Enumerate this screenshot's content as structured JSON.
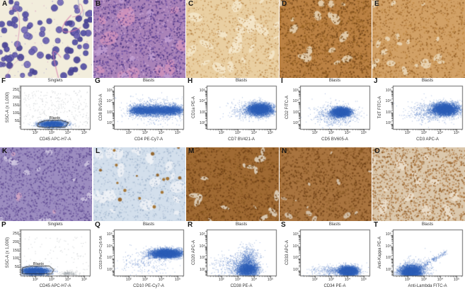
{
  "colors": {
    "dot_blue": "#2e5fb7",
    "dot_grey": "#9aa0a6",
    "axis": "#444444",
    "gate": "#1f1f1f",
    "text": "#333333"
  },
  "histology_panels": [
    {
      "letter": "A",
      "bg": "#f2eddc",
      "cells": {
        "n": 92,
        "rmin": 3.0,
        "rmax": 4.8,
        "colors": [
          "#5a55a6",
          "#6c63b2",
          "#4d4898",
          "#7a71ba"
        ],
        "stroke": "#3c3a84"
      },
      "dots": {
        "n": 70,
        "rmin": 0.4,
        "rmax": 0.9,
        "colors": [
          "#9b93cc",
          "#d9a4c4"
        ]
      },
      "fibers": [
        {
          "color": "#d77fae",
          "n": 5
        },
        {
          "color": "#4952a8",
          "n": 2
        }
      ]
    },
    {
      "letter": "B",
      "bg": "#a982b8",
      "patches": [
        {
          "color": "#cf92bb",
          "n": 12,
          "rmin": 6,
          "rmax": 14,
          "squish": 0.6
        },
        {
          "color": "#bf9cd0",
          "n": 10,
          "rmin": 3,
          "rmax": 7,
          "squish": 0.8
        }
      ],
      "dots": {
        "n": 1500,
        "rmin": 0.6,
        "rmax": 1.3,
        "colors": [
          "#5c4190",
          "#6f51a5",
          "#4a3380",
          "#c9a8d4"
        ]
      }
    },
    {
      "letter": "C",
      "bg": "#e9cfa2",
      "patches": [
        {
          "color": "#f5e7cb",
          "n": 26,
          "rmin": 4,
          "rmax": 12,
          "squish": 0.35
        }
      ],
      "dots": {
        "n": 950,
        "rmin": 0.5,
        "rmax": 1.1,
        "colors": [
          "#c59356",
          "#b07c3e",
          "#d6ac72"
        ]
      }
    },
    {
      "letter": "D",
      "bg": "#bb8143",
      "patches": [
        {
          "color": "#e7d6b8",
          "n": 16,
          "rmin": 3,
          "rmax": 9,
          "squish": 0.45
        }
      ],
      "dots": {
        "n": 1350,
        "rmin": 0.6,
        "rmax": 1.3,
        "colors": [
          "#82511d",
          "#93601f",
          "#6f4416"
        ]
      }
    },
    {
      "letter": "E",
      "bg": "#d2a166",
      "patches": [
        {
          "color": "#ecdabd",
          "n": 18,
          "rmin": 3,
          "rmax": 8,
          "squish": 0.45
        }
      ],
      "dots": {
        "n": 1250,
        "rmin": 0.5,
        "rmax": 1.2,
        "colors": [
          "#a86e2f",
          "#8f5a22",
          "#c08a44"
        ]
      }
    },
    {
      "letter": "K",
      "bg": "#9c8dc0",
      "patches": [
        {
          "color": "#cfc6e0",
          "n": 14,
          "rmin": 3,
          "rmax": 8,
          "squish": 0.5
        },
        {
          "color": "#d8a8c4",
          "n": 4,
          "rmin": 2,
          "rmax": 5,
          "squish": 0.7
        }
      ],
      "dots": {
        "n": 1350,
        "rmin": 0.6,
        "rmax": 1.2,
        "colors": [
          "#665098",
          "#55418a",
          "#7a66ab"
        ]
      }
    },
    {
      "letter": "L",
      "bg": "#d3dfec",
      "patches": [
        {
          "color": "#eef2f7",
          "n": 20,
          "rmin": 4,
          "rmax": 12,
          "squish": 0.4
        }
      ],
      "dots": {
        "n": 900,
        "rmin": 0.5,
        "rmax": 1.1,
        "colors": [
          "#a8bcd3",
          "#93a9c4",
          "#b9c9dc"
        ]
      },
      "blobs": {
        "n": 16,
        "rmin": 1.2,
        "rmax": 2.8,
        "colors": [
          "#8f5c1e",
          "#a06a24"
        ]
      }
    },
    {
      "letter": "M",
      "bg": "#a06a33",
      "patches": [
        {
          "color": "#e3d8c8",
          "n": 14,
          "rmin": 3,
          "rmax": 10,
          "squish": 0.3
        }
      ],
      "dots": {
        "n": 1350,
        "rmin": 0.6,
        "rmax": 1.3,
        "colors": [
          "#7a491c",
          "#8a5a22",
          "#693d14"
        ]
      }
    },
    {
      "letter": "N",
      "bg": "#a9743f",
      "patches": [
        {
          "color": "#d9cbb8",
          "n": 12,
          "rmin": 2,
          "rmax": 7,
          "squish": 0.3
        }
      ],
      "dots": {
        "n": 1350,
        "rmin": 0.6,
        "rmax": 1.3,
        "colors": [
          "#7d4c1e",
          "#90602a",
          "#6b3e15"
        ]
      }
    },
    {
      "letter": "O",
      "bg": "#dbc8ad",
      "patches": [
        {
          "color": "#ecdfcd",
          "n": 16,
          "rmin": 3,
          "rmax": 9,
          "squish": 0.5
        }
      ],
      "dots": {
        "n": 1350,
        "rmin": 0.6,
        "rmax": 1.3,
        "colors": [
          "#a0672c",
          "#8f5a24",
          "#b98550"
        ]
      }
    }
  ],
  "chart_data": [
    {
      "type": "scatter",
      "letter": "F",
      "title": "Singlets",
      "x_label": "CD45 APC-H7-A",
      "y_label": "SSC-A  (x 1,000)",
      "x_scale": "log",
      "y_scale": "linear",
      "x_tick_exponents": [
        2,
        3,
        4,
        5
      ],
      "y_ticks": [
        50,
        100,
        150,
        200,
        250
      ],
      "x_range": [
        1.1,
        5.35
      ],
      "y_range": [
        0,
        280
      ],
      "gate_label": "Blasts",
      "gate": [
        [
          2.15,
          16
        ],
        [
          2.2,
          40
        ],
        [
          2.65,
          55
        ],
        [
          3.55,
          57
        ],
        [
          4.05,
          41
        ],
        [
          3.85,
          12
        ],
        [
          2.6,
          9
        ]
      ],
      "gate_label_pos": [
        3.2,
        66
      ],
      "populations": [
        {
          "color": "blue",
          "n": 2600,
          "cx": 3.05,
          "cy": 33,
          "sx": 0.42,
          "sy": 11
        },
        {
          "color": "grey",
          "n": 300,
          "uniform": [
            1.25,
            5.25,
            6,
            250
          ]
        }
      ]
    },
    {
      "type": "scatter",
      "letter": "G",
      "title": "Blasts",
      "x_label": "CD4 PE-Cy7-A",
      "y_label": "CD8 BV510-A",
      "x_scale": "log",
      "y_scale": "log",
      "x_tick_exponents": [
        2,
        3,
        4,
        5
      ],
      "y_tick_exponents": [
        2,
        3,
        4,
        5
      ],
      "x_range": [
        1.1,
        5.35
      ],
      "y_range": [
        1.55,
        5.45
      ],
      "populations": [
        {
          "color": "blue",
          "n": 5200,
          "band": [
            2.25,
            5.1
          ],
          "sx": 0.18,
          "cy": 3.25,
          "sy": 0.22
        },
        {
          "color": "blue",
          "n": 700,
          "cx": 3.6,
          "cy": 3.25,
          "sx": 0.9,
          "sy": 0.55
        }
      ]
    },
    {
      "type": "scatter",
      "letter": "H",
      "title": "Blasts",
      "x_label": "CD7 BV421-A",
      "y_label": "CD1a PE-A",
      "x_scale": "log",
      "y_scale": "log",
      "x_tick_exponents": [
        2,
        3,
        4,
        5
      ],
      "y_tick_exponents": [
        2,
        3,
        4,
        5
      ],
      "x_range": [
        1.1,
        5.35
      ],
      "y_range": [
        1.55,
        5.45
      ],
      "populations": [
        {
          "color": "blue",
          "n": 4800,
          "cx": 4.35,
          "cy": 3.35,
          "sx": 0.38,
          "sy": 0.27
        },
        {
          "color": "blue",
          "n": 300,
          "cx": 3.6,
          "cy": 3.2,
          "sx": 0.6,
          "sy": 0.45
        }
      ]
    },
    {
      "type": "scatter",
      "letter": "I",
      "title": "Blasts",
      "x_label": "CD5 BV605-A",
      "y_label": "CD2 FITC-A",
      "x_scale": "log",
      "y_scale": "log",
      "x_tick_exponents": [
        2,
        3,
        4,
        5
      ],
      "y_tick_exponents": [
        2,
        3,
        4,
        5
      ],
      "x_range": [
        1.1,
        5.35
      ],
      "y_range": [
        1.55,
        5.45
      ],
      "populations": [
        {
          "color": "blue",
          "n": 4200,
          "cx": 3.6,
          "cy": 3.08,
          "sx": 0.27,
          "sy": 0.2
        },
        {
          "color": "blue",
          "n": 700,
          "cx": 3.25,
          "cy": 2.85,
          "sx": 0.65,
          "sy": 0.5
        }
      ]
    },
    {
      "type": "scatter",
      "letter": "J",
      "title": "Blasts",
      "x_label": "CD3 APC-A",
      "y_label": "TdT FITC-A",
      "x_scale": "log",
      "y_scale": "log",
      "x_tick_exponents": [
        2,
        3,
        4,
        5
      ],
      "y_tick_exponents": [
        2,
        3,
        4,
        5
      ],
      "x_range": [
        1.1,
        5.35
      ],
      "y_range": [
        1.55,
        5.45
      ],
      "populations": [
        {
          "color": "blue",
          "n": 4800,
          "cx": 4.3,
          "cy": 3.35,
          "sx": 0.4,
          "sy": 0.28
        },
        {
          "color": "blue",
          "n": 600,
          "cx": 3.5,
          "cy": 3.1,
          "sx": 0.8,
          "sy": 0.45
        }
      ]
    },
    {
      "type": "scatter",
      "letter": "P",
      "title": "Singlets",
      "x_label": "CD45 APC-H7-A",
      "y_label": "SSC-A  (x 1,000)",
      "x_scale": "log",
      "y_scale": "linear",
      "x_tick_exponents": [
        2,
        3,
        4,
        5
      ],
      "y_ticks": [
        50,
        100,
        150,
        200,
        250
      ],
      "x_range": [
        1.1,
        5.35
      ],
      "y_range": [
        0,
        280
      ],
      "gate_label": "Blasts",
      "gate": [
        [
          1.22,
          10
        ],
        [
          1.22,
          48
        ],
        [
          1.7,
          58
        ],
        [
          2.85,
          58
        ],
        [
          3.15,
          36
        ],
        [
          3.0,
          10
        ]
      ],
      "gate_label_pos": [
        2.2,
        66
      ],
      "populations": [
        {
          "color": "blue",
          "n": 3200,
          "cx": 2.0,
          "cy": 28,
          "sx": 0.42,
          "sy": 12
        },
        {
          "color": "grey",
          "n": 160,
          "cx": 4.05,
          "cy": 14,
          "sx": 0.25,
          "sy": 7
        },
        {
          "color": "grey",
          "n": 110,
          "uniform": [
            1.25,
            5.25,
            5,
            240
          ]
        }
      ]
    },
    {
      "type": "scatter",
      "letter": "Q",
      "title": "Blasts",
      "x_label": "CD10 PE-Cy7-A",
      "y_label": "CD19 PerCP-Cy5-5A",
      "x_scale": "log",
      "y_scale": "log",
      "x_tick_exponents": [
        2,
        3,
        4,
        5
      ],
      "y_tick_exponents": [
        2,
        3,
        4,
        5
      ],
      "x_range": [
        1.1,
        5.35
      ],
      "y_range": [
        1.55,
        5.45
      ],
      "populations": [
        {
          "color": "blue",
          "n": 5200,
          "cx": 4.3,
          "cy": 3.45,
          "sx": 0.48,
          "sy": 0.19
        },
        {
          "color": "blue",
          "n": 260,
          "cx": 3.0,
          "cy": 2.8,
          "sx": 0.8,
          "sy": 0.5
        }
      ]
    },
    {
      "type": "scatter",
      "letter": "R",
      "title": "Blasts",
      "x_label": "CD38 PE-A",
      "y_label": "CD20 APC-A",
      "x_scale": "log",
      "y_scale": "log",
      "x_tick_exponents": [
        2,
        3,
        4,
        5
      ],
      "y_tick_exponents": [
        2,
        3,
        4,
        5
      ],
      "x_range": [
        1.1,
        5.35
      ],
      "y_range": [
        1.55,
        5.45
      ],
      "populations": [
        {
          "color": "blue",
          "n": 2600,
          "cx": 3.6,
          "cy": 2.05,
          "sx": 0.33,
          "sy": 0.28
        },
        {
          "color": "blue",
          "n": 900,
          "cx": 3.65,
          "cy": 2.8,
          "sx": 0.3,
          "sy": 0.6
        },
        {
          "color": "blue",
          "n": 500,
          "cx": 2.9,
          "cy": 2.4,
          "sx": 0.7,
          "sy": 0.5
        }
      ]
    },
    {
      "type": "scatter",
      "letter": "S",
      "title": "Blasts",
      "x_label": "CD34 PE-A",
      "y_label": "CD33 APC-A",
      "x_scale": "log",
      "y_scale": "log",
      "x_tick_exponents": [
        2,
        3,
        4,
        5
      ],
      "y_tick_exponents": [
        2,
        3,
        4,
        5
      ],
      "x_range": [
        1.1,
        5.35
      ],
      "y_range": [
        1.55,
        5.45
      ],
      "populations": [
        {
          "color": "blue",
          "n": 4200,
          "cx": 4.05,
          "cy": 1.95,
          "sx": 0.28,
          "sy": 0.2
        },
        {
          "color": "blue",
          "n": 500,
          "cx": 3.2,
          "cy": 1.95,
          "sx": 0.7,
          "sy": 0.25
        }
      ]
    },
    {
      "type": "scatter",
      "letter": "T",
      "title": "Blasts",
      "x_label": "Anti-Lambda FITC-A",
      "y_label": "Anti-Kappa PE-A",
      "x_scale": "log",
      "y_scale": "log",
      "x_tick_exponents": [
        2,
        3,
        4,
        5
      ],
      "y_tick_exponents": [
        2,
        3,
        4,
        5
      ],
      "x_range": [
        1.1,
        5.35
      ],
      "y_range": [
        1.55,
        5.45
      ],
      "populations": [
        {
          "color": "blue",
          "n": 4200,
          "cx": 2.2,
          "cy": 1.9,
          "sx": 0.33,
          "sy": 0.28
        },
        {
          "color": "blue",
          "n": 220,
          "line": [
            2.55,
            2.1,
            4.35,
            3.55
          ],
          "jitter": 0.09
        },
        {
          "color": "blue",
          "n": 350,
          "cx": 2.5,
          "cy": 2.1,
          "sx": 0.6,
          "sy": 0.5
        }
      ]
    }
  ]
}
